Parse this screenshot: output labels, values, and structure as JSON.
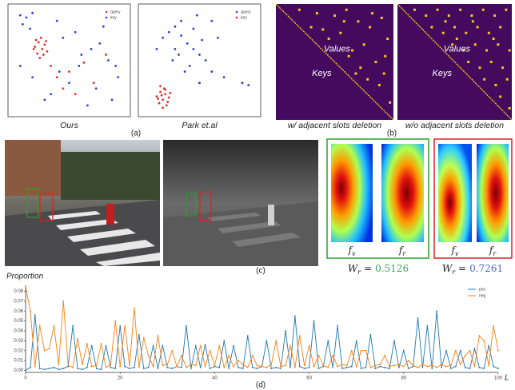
{
  "chart_data": [
    {
      "type": "scatter",
      "caption": "Ours",
      "xlim": [
        0,
        1
      ],
      "ylim": [
        0,
        1
      ],
      "legend": "upper right",
      "series": [
        {
          "name": "query",
          "color": "#e03030",
          "x": [
            0.22,
            0.25,
            0.28,
            0.3,
            0.24,
            0.27,
            0.32,
            0.26,
            0.21,
            0.29,
            0.23,
            0.31,
            0.35,
            0.5,
            0.62,
            0.7,
            0.45,
            0.8,
            0.55,
            0.4
          ],
          "y": [
            0.62,
            0.66,
            0.6,
            0.64,
            0.56,
            0.7,
            0.58,
            0.52,
            0.6,
            0.55,
            0.68,
            0.67,
            0.45,
            0.4,
            0.48,
            0.3,
            0.25,
            0.55,
            0.2,
            0.35
          ]
        },
        {
          "name": "key",
          "color": "#2a3fd0",
          "x": [
            0.1,
            0.15,
            0.2,
            0.12,
            0.18,
            0.4,
            0.45,
            0.55,
            0.6,
            0.68,
            0.75,
            0.82,
            0.88,
            0.9,
            0.5,
            0.35,
            0.3,
            0.65,
            0.72,
            0.85,
            0.42,
            0.58,
            0.2,
            0.1,
            0.78
          ],
          "y": [
            0.9,
            0.88,
            0.92,
            0.82,
            0.78,
            0.85,
            0.7,
            0.75,
            0.55,
            0.6,
            0.65,
            0.5,
            0.45,
            0.35,
            0.3,
            0.2,
            0.15,
            0.1,
            0.25,
            0.15,
            0.4,
            0.45,
            0.35,
            0.45,
            0.8
          ]
        }
      ]
    },
    {
      "type": "scatter",
      "caption": "Park et.al",
      "xlim": [
        0,
        1
      ],
      "ylim": [
        0,
        1
      ],
      "legend": "upper right",
      "series": [
        {
          "name": "query",
          "color": "#2a3fd0",
          "x": [
            0.2,
            0.25,
            0.3,
            0.35,
            0.4,
            0.45,
            0.5,
            0.55,
            0.6,
            0.3,
            0.42,
            0.28,
            0.38,
            0.48,
            0.65,
            0.7,
            0.5,
            0.35,
            0.15,
            0.85,
            0.9,
            0.6,
            0.45,
            0.52,
            0.33
          ],
          "y": [
            0.7,
            0.75,
            0.8,
            0.72,
            0.65,
            0.6,
            0.55,
            0.5,
            0.85,
            0.6,
            0.45,
            0.5,
            0.4,
            0.9,
            0.7,
            0.35,
            0.3,
            0.85,
            0.6,
            0.3,
            0.28,
            0.4,
            0.78,
            0.68,
            0.55
          ]
        },
        {
          "name": "key",
          "color": "#e03030",
          "x": [
            0.15,
            0.18,
            0.2,
            0.22,
            0.25,
            0.17,
            0.21,
            0.24,
            0.19,
            0.23,
            0.16,
            0.26,
            0.2,
            0.22,
            0.18
          ],
          "y": [
            0.18,
            0.22,
            0.15,
            0.2,
            0.17,
            0.12,
            0.25,
            0.13,
            0.19,
            0.1,
            0.16,
            0.21,
            0.08,
            0.24,
            0.27
          ]
        }
      ]
    },
    {
      "type": "matrix",
      "caption": "w/ adjacent slots deletion",
      "upper_label": "Values",
      "lower_label": "Keys",
      "color": "#f5c518",
      "background": "#440a5e",
      "x": [
        0.2,
        0.35,
        0.5,
        0.6,
        0.7,
        0.8,
        0.9,
        0.95,
        0.45,
        0.55,
        0.65,
        0.75,
        0.85,
        0.92,
        0.3,
        0.62,
        0.72,
        0.88,
        0.97,
        0.58,
        0.78,
        0.68,
        0.82,
        0.4,
        0.93
      ],
      "y": [
        0.05,
        0.08,
        0.1,
        0.05,
        0.15,
        0.2,
        0.12,
        0.3,
        0.3,
        0.25,
        0.4,
        0.35,
        0.5,
        0.6,
        0.2,
        0.45,
        0.55,
        0.7,
        0.85,
        0.15,
        0.65,
        0.6,
        0.08,
        0.22,
        0.45
      ]
    },
    {
      "type": "matrix",
      "caption": "w/o adjacent slots deletion",
      "upper_label": "Values",
      "lower_label": "Keys",
      "color": "#f5c518",
      "background": "#440a5e",
      "x": [
        0.15,
        0.25,
        0.35,
        0.45,
        0.55,
        0.65,
        0.75,
        0.85,
        0.95,
        0.3,
        0.4,
        0.5,
        0.6,
        0.7,
        0.8,
        0.9,
        0.48,
        0.58,
        0.68,
        0.78,
        0.88,
        0.98,
        0.62,
        0.72,
        0.82,
        0.92,
        0.76,
        0.86,
        0.96,
        0.9,
        0.98,
        0.52,
        0.42,
        0.66,
        0.84
      ],
      "y": [
        0.05,
        0.1,
        0.05,
        0.1,
        0.05,
        0.1,
        0.05,
        0.1,
        0.05,
        0.2,
        0.25,
        0.2,
        0.25,
        0.2,
        0.25,
        0.2,
        0.35,
        0.4,
        0.35,
        0.4,
        0.35,
        0.4,
        0.5,
        0.55,
        0.5,
        0.55,
        0.65,
        0.7,
        0.65,
        0.8,
        0.9,
        0.3,
        0.15,
        0.15,
        0.3
      ]
    },
    {
      "type": "line",
      "ylabel": "Proportion",
      "xlabel": "L",
      "legend": "upper right",
      "xlim": [
        0,
        100
      ],
      "ylim": [
        -0.002,
        0.086
      ],
      "xticks": [
        0,
        20,
        40,
        60,
        80,
        100
      ],
      "yticks": [
        {
          "value": 0,
          "label": "0.00"
        },
        0.01,
        0.02,
        0.03,
        0.04,
        0.05,
        0.06,
        0.07,
        0.08
      ],
      "x": [
        0,
        1,
        2,
        3,
        4,
        5,
        6,
        7,
        8,
        9,
        10,
        11,
        12,
        13,
        14,
        15,
        16,
        17,
        18,
        19,
        20,
        21,
        22,
        23,
        24,
        25,
        26,
        27,
        28,
        29,
        30,
        31,
        32,
        33,
        34,
        35,
        36,
        37,
        38,
        39,
        40,
        41,
        42,
        43,
        44,
        45,
        46,
        47,
        48,
        49,
        50,
        51,
        52,
        53,
        54,
        55,
        56,
        57,
        58,
        59,
        60,
        61,
        62,
        63,
        64,
        65,
        66,
        67,
        68,
        69,
        70,
        71,
        72,
        73,
        74,
        75,
        76,
        77,
        78,
        79,
        80,
        81,
        82,
        83,
        84,
        85,
        86,
        87,
        88,
        89,
        90,
        91,
        92,
        93,
        94,
        95,
        96,
        97,
        98,
        99,
        100
      ],
      "series": [
        {
          "name": "pos",
          "color": "#1f77b4",
          "values": [
            0.0,
            0.003,
            0.056,
            0.002,
            0.001,
            0.002,
            0.003,
            0.001,
            0.002,
            0.004,
            0.045,
            0.002,
            0.001,
            0.003,
            0.025,
            0.002,
            0.001,
            0.025,
            0.003,
            0.002,
            0.045,
            0.004,
            0.002,
            0.003,
            0.036,
            0.002,
            0.003,
            0.025,
            0.002,
            0.025,
            0.003,
            0.002,
            0.004,
            0.003,
            0.045,
            0.002,
            0.025,
            0.003,
            0.026,
            0.002,
            0.004,
            0.003,
            0.03,
            0.002,
            0.025,
            0.003,
            0.002,
            0.035,
            0.003,
            0.002,
            0.004,
            0.03,
            0.002,
            0.003,
            0.002,
            0.04,
            0.003,
            0.055,
            0.004,
            0.002,
            0.003,
            0.05,
            0.002,
            0.004,
            0.03,
            0.003,
            0.045,
            0.002,
            0.003,
            0.004,
            0.03,
            0.002,
            0.003,
            0.036,
            0.002,
            0.004,
            0.003,
            0.002,
            0.03,
            0.003,
            0.02,
            0.002,
            0.004,
            0.053,
            0.003,
            0.045,
            0.002,
            0.06,
            0.003,
            0.02,
            0.002,
            0.004,
            0.02,
            0.003,
            0.002,
            0.022,
            0.003,
            0.002,
            0.025,
            0.004,
            0.002
          ]
        },
        {
          "name": "neg",
          "color": "#ff7f0e",
          "values": [
            0.085,
            0.06,
            0.004,
            0.045,
            0.02,
            0.022,
            0.045,
            0.006,
            0.07,
            0.005,
            0.003,
            0.032,
            0.006,
            0.027,
            0.004,
            0.005,
            0.027,
            0.003,
            0.006,
            0.05,
            0.004,
            0.045,
            0.005,
            0.063,
            0.003,
            0.033,
            0.015,
            0.004,
            0.035,
            0.005,
            0.006,
            0.02,
            0.004,
            0.015,
            0.003,
            0.006,
            0.005,
            0.025,
            0.004,
            0.02,
            0.005,
            0.025,
            0.003,
            0.015,
            0.004,
            0.01,
            0.006,
            0.003,
            0.015,
            0.005,
            0.004,
            0.003,
            0.006,
            0.03,
            0.004,
            0.005,
            0.025,
            0.003,
            0.035,
            0.005,
            0.025,
            0.004,
            0.015,
            0.005,
            0.003,
            0.015,
            0.004,
            0.006,
            0.005,
            0.02,
            0.004,
            0.02,
            0.02,
            0.003,
            0.005,
            0.006,
            0.015,
            0.004,
            0.005,
            0.006,
            0.004,
            0.01,
            0.005,
            0.003,
            0.006,
            0.004,
            0.005,
            0.003,
            0.006,
            0.004,
            0.005,
            0.02,
            0.006,
            0.015,
            0.02,
            0.004,
            0.035,
            0.03,
            0.005,
            0.045,
            0.02
          ]
        }
      ]
    }
  ],
  "figure": {
    "panel_labels": [
      "(a)",
      "(b)",
      "(c)",
      "(d)"
    ],
    "heatmap_groups": [
      {
        "frame_color": "#2ca02c",
        "maps": [
          {
            "symbol": "f",
            "subscript": "v"
          },
          {
            "symbol": "f",
            "subscript": "r"
          }
        ],
        "weight_symbol": "W",
        "weight_subscript": "r",
        "relation": "=",
        "weight": 0.5126,
        "weight_color": "#3aa060"
      },
      {
        "frame_color": "#e02020",
        "maps": [
          {
            "symbol": "f",
            "subscript": "v"
          },
          {
            "symbol": "f",
            "subscript": "r"
          }
        ],
        "weight_symbol": "W",
        "weight_subscript": "r",
        "relation": "=",
        "weight": 0.7261,
        "weight_color": "#4a6ad0"
      }
    ]
  }
}
